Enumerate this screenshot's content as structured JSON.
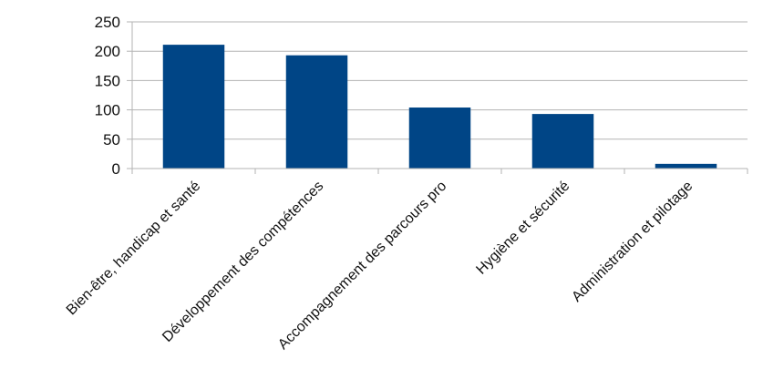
{
  "chart_data": {
    "type": "bar",
    "categories": [
      "Bien-être, handicap et santé",
      "Développement des compétences",
      "Accompagnement des parcours pro",
      "Hygiène et sécurité",
      "Administration et pilotage"
    ],
    "values": [
      211,
      193,
      104,
      93,
      8
    ],
    "title": "",
    "xlabel": "",
    "ylabel": "",
    "ylim": [
      0,
      250
    ],
    "yticks": [
      0,
      50,
      100,
      150,
      200,
      250
    ],
    "bar_color": "#004586",
    "grid": true,
    "legend": "none"
  }
}
